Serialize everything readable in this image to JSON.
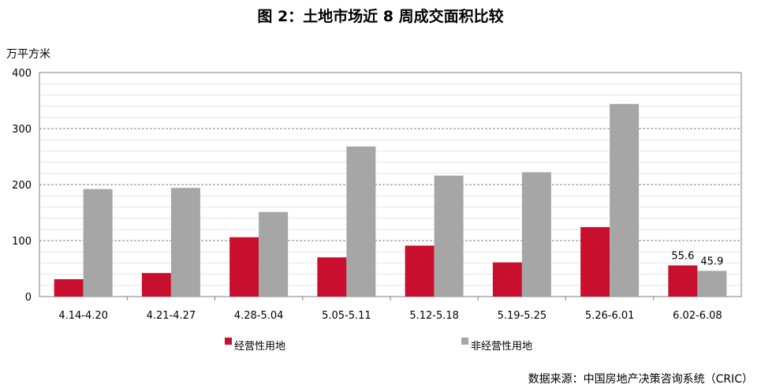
{
  "title": "图 2：土地市场近 8 周成交面积比较",
  "unit_label": "万平方米",
  "source": "数据来源：中国房地产决策咨询系统（CRIC）",
  "colors": {
    "series1": "#c8102e",
    "series2": "#a6a6a6"
  },
  "chart_data": {
    "type": "bar",
    "title": "图 2：土地市场近 8 周成交面积比较",
    "ylabel": "万平方米",
    "xlabel": "",
    "ylim": [
      0,
      400
    ],
    "yticks": [
      "0",
      "100",
      "200",
      "300",
      "400"
    ],
    "grid": true,
    "legend_position": "bottom",
    "categories": [
      "4.14-4.20",
      "4.21-4.27",
      "4.28-5.04",
      "5.05-5.11",
      "5.12-5.18",
      "5.19-5.25",
      "5.26-6.01",
      "6.02-6.08"
    ],
    "series": [
      {
        "name": "经营性用地",
        "values": [
          31,
          42,
          106,
          70,
          91,
          61,
          124,
          55.6
        ]
      },
      {
        "name": "非经营性用地",
        "values": [
          192,
          194,
          151,
          268,
          216,
          222,
          344,
          45.9
        ]
      }
    ],
    "data_labels": [
      "55.6",
      "45.9"
    ]
  }
}
